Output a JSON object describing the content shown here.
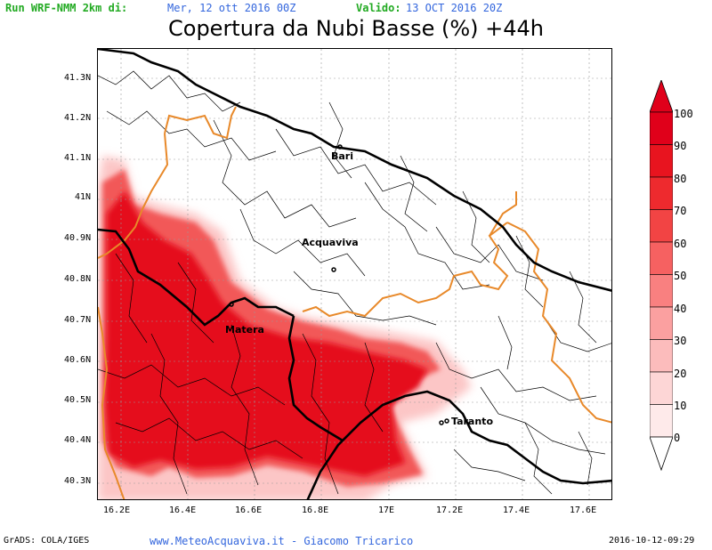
{
  "header": {
    "run_label": "Run WRF-NMM 2km di:",
    "run_value": "Mer, 12 ott 2016 00Z",
    "valid_label": "Valido:",
    "valid_value": "13 OCT 2016 20Z"
  },
  "title": "Copertura da Nubi Basse (%) +44h",
  "axes": {
    "y_ticks": [
      "41.3N",
      "41.2N",
      "41.1N",
      "41N",
      "40.9N",
      "40.8N",
      "40.7N",
      "40.6N",
      "40.5N",
      "40.4N",
      "40.3N"
    ],
    "x_ticks": [
      "16.2E",
      "16.4E",
      "16.6E",
      "16.8E",
      "17E",
      "17.2E",
      "17.4E",
      "17.6E"
    ]
  },
  "cities": [
    "Bari",
    "Acquaviva",
    "Matera",
    "Taranto"
  ],
  "colorbar": {
    "levels": [
      "100",
      "90",
      "80",
      "70",
      "60",
      "50",
      "40",
      "30",
      "20",
      "10",
      "0"
    ],
    "colors": [
      "#e0001a",
      "#e8141f",
      "#ee2a2e",
      "#f24444",
      "#f66161",
      "#f98080",
      "#fba0a0",
      "#fcbcbc",
      "#fdd6d6",
      "#feeaea"
    ]
  },
  "footer": {
    "grads": "GrADS: COLA/IGES",
    "site": "www.MeteoAcquaviva.it  -  Giacomo Tricarico",
    "timestamp": "2016-10-12-09:29"
  }
}
